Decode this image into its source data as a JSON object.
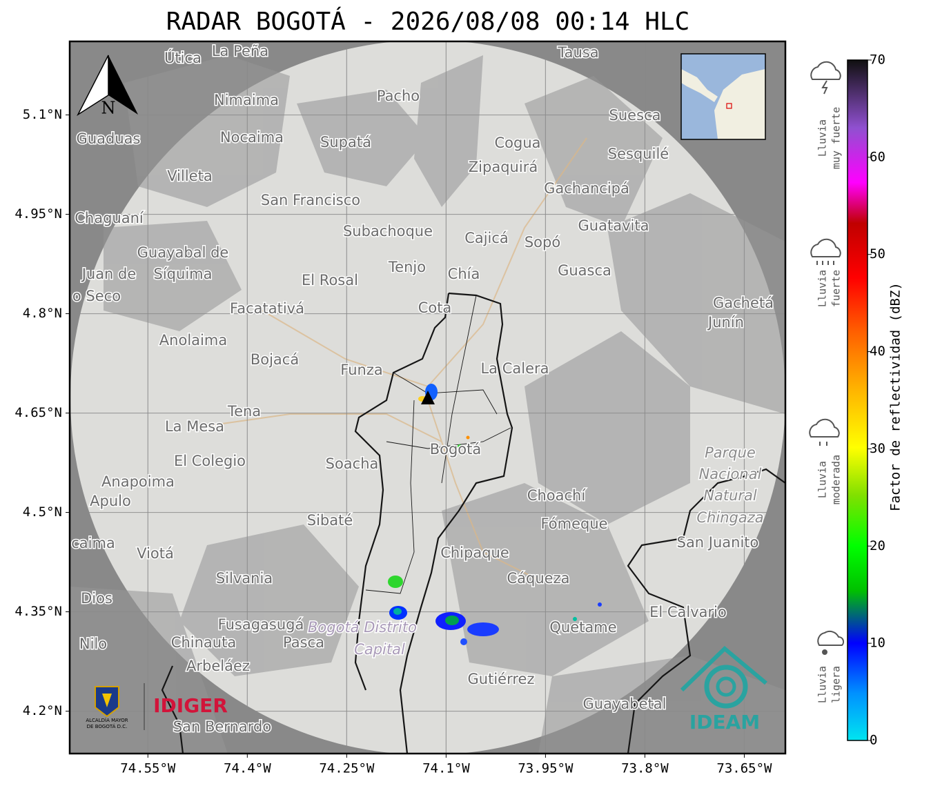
{
  "title": "RADAR BOGOTÁ - 2026/08/08 00:14 HLC",
  "map": {
    "xlim": [
      -74.668,
      -73.588
    ],
    "ylim": [
      4.136,
      5.211
    ],
    "xticks": [
      {
        "value": -74.55,
        "label": "74.55°W"
      },
      {
        "value": -74.4,
        "label": "74.4°W"
      },
      {
        "value": -74.25,
        "label": "74.25°W"
      },
      {
        "value": -74.1,
        "label": "74.1°W"
      },
      {
        "value": -73.95,
        "label": "73.95°W"
      },
      {
        "value": -73.8,
        "label": "73.8°W"
      },
      {
        "value": -73.65,
        "label": "73.65°W"
      }
    ],
    "yticks": [
      {
        "value": 5.1,
        "label": "5.1°N"
      },
      {
        "value": 4.95,
        "label": "4.95°N"
      },
      {
        "value": 4.8,
        "label": "4.8°N"
      },
      {
        "value": 4.65,
        "label": "4.65°N"
      },
      {
        "value": 4.5,
        "label": "4.5°N"
      },
      {
        "value": 4.35,
        "label": "4.35°N"
      },
      {
        "value": 4.2,
        "label": "4.2°N"
      }
    ],
    "north": "N",
    "places": [
      "La Peña",
      "Útica",
      "Tausa",
      "Pacho",
      "Nimaima",
      "Guaduas",
      "Nocaima",
      "Supatá",
      "Cogua",
      "Suesca",
      "Zipaquirá",
      "Sesquilé",
      "Villeta",
      "San Francisco",
      "Gachancipá",
      "Chaguaní",
      "Guatavita",
      "Subachoque",
      "Cajicá",
      "Sopó",
      "Guayabal de",
      "Síquima",
      "Tenjo",
      "Chía",
      "Guasca",
      "El Rosal",
      "Juan de",
      "o Seco",
      "Facatativá",
      "Cota",
      "Gachetá",
      "Junín",
      "Anolaima",
      "Bojacá",
      "Funza",
      "La Calera",
      "Tena",
      "La Mesa",
      "Bogotá",
      "Parque",
      "Nacional",
      "Natural",
      "Chingaza",
      "El Colegio",
      "Soacha",
      "Anapoima",
      "Apulo",
      "Choachí",
      "Sibaté",
      "Fómeque",
      "San Juanito",
      "caima",
      "Viotá",
      "Chipaque",
      "Silvania",
      "Cáqueza",
      "El Calvario",
      "Dios",
      "Fusagasugá",
      "Bogotá Distrito",
      "Capital",
      "Quetame",
      "Nilo",
      "Chinauta",
      "Pasca",
      "Arbeláez",
      "Gutiérrez",
      "Guayabetal",
      "San Bernardo"
    ]
  },
  "colorbar": {
    "label": "Factor de reflectividad (dBZ)",
    "lim": [
      0,
      70
    ],
    "ticks": [
      0,
      10,
      20,
      30,
      40,
      50,
      60,
      70
    ]
  },
  "legend": [
    [
      "Lluvia",
      "muy fuerte"
    ],
    [
      "Lluvia",
      "fuerte"
    ],
    [
      "Lluvia",
      "moderada"
    ],
    [
      "Lluvia",
      "ligera"
    ]
  ],
  "logos": {
    "alcaldia": [
      "ALCALDÍA MAYOR",
      "DE BOGOTÁ D.C."
    ],
    "idiger": "IDIGER",
    "ideam": "IDEAM"
  }
}
